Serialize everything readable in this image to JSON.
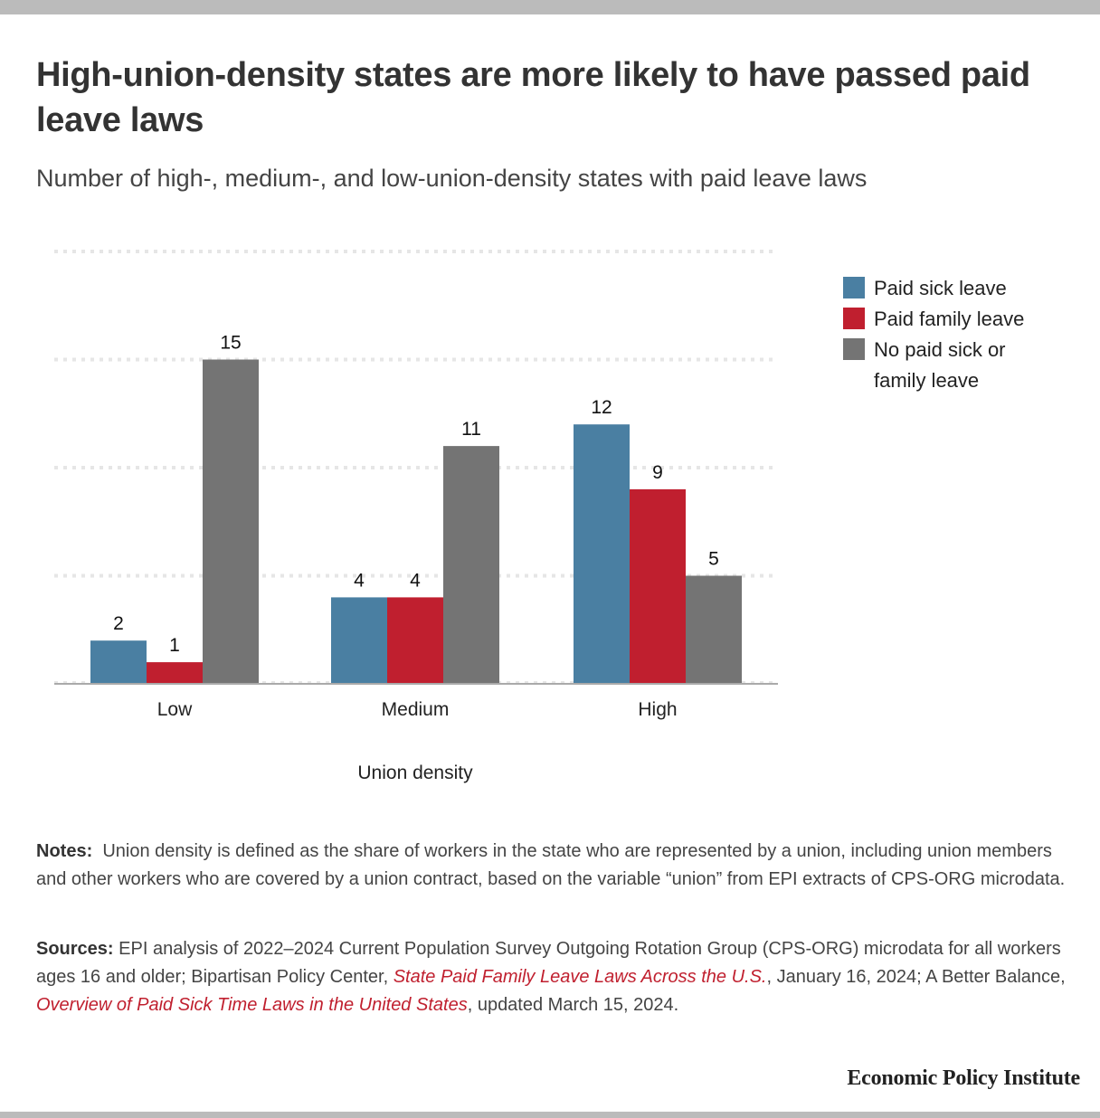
{
  "title": "High-union-density states are more likely to have passed paid leave laws",
  "subtitle": "Number of high-, medium-, and low-union-density states with paid leave laws",
  "chart_data": {
    "type": "bar",
    "title": "High-union-density states are more likely to have passed paid leave laws",
    "subtitle": "Number of high-, medium-, and low-union-density states with paid leave laws",
    "xlabel": "Union density",
    "ylabel": "",
    "categories": [
      "Low",
      "Medium",
      "High"
    ],
    "series": [
      {
        "name": "Paid sick leave",
        "color": "#4a7fa2",
        "values": [
          2,
          4,
          12
        ]
      },
      {
        "name": "Paid family leave",
        "color": "#c01f2f",
        "values": [
          1,
          4,
          9
        ]
      },
      {
        "name": "No paid sick or family leave",
        "color": "#747474",
        "values": [
          15,
          11,
          5
        ]
      }
    ],
    "ylim": [
      0,
      20
    ],
    "yticks": [
      0,
      5,
      10,
      15,
      20
    ],
    "show_ytick_labels": false,
    "grid": true,
    "data_labels": true,
    "legend_position": "right"
  },
  "legend": [
    {
      "label": "Paid sick leave",
      "color": "#4a7fa2"
    },
    {
      "label": "Paid family leave",
      "color": "#c01f2f"
    },
    {
      "label": "No paid sick or family leave",
      "color": "#747474"
    }
  ],
  "notes": {
    "label": "Notes:",
    "text": "Union density is defined as the share of workers in the state who are represented by a union, including union members and other workers who are covered by a union contract, based on the variable “union” from EPI extracts of CPS-ORG microdata."
  },
  "sources": {
    "label": "Sources:",
    "part1": "EPI analysis of 2022–2024 Current Population Survey Outgoing Rotation Group (CPS-ORG) microdata for all workers ages 16 and older; Bipartisan Policy Center, ",
    "link1": "State Paid Family Leave Laws Across the U.S.",
    "part2": ", January 16, 2024; A Better Balance, ",
    "link2": "Overview of Paid Sick Time Laws in the United States",
    "part3": ", updated March 15, 2024."
  },
  "brand": "Economic Policy Institute"
}
